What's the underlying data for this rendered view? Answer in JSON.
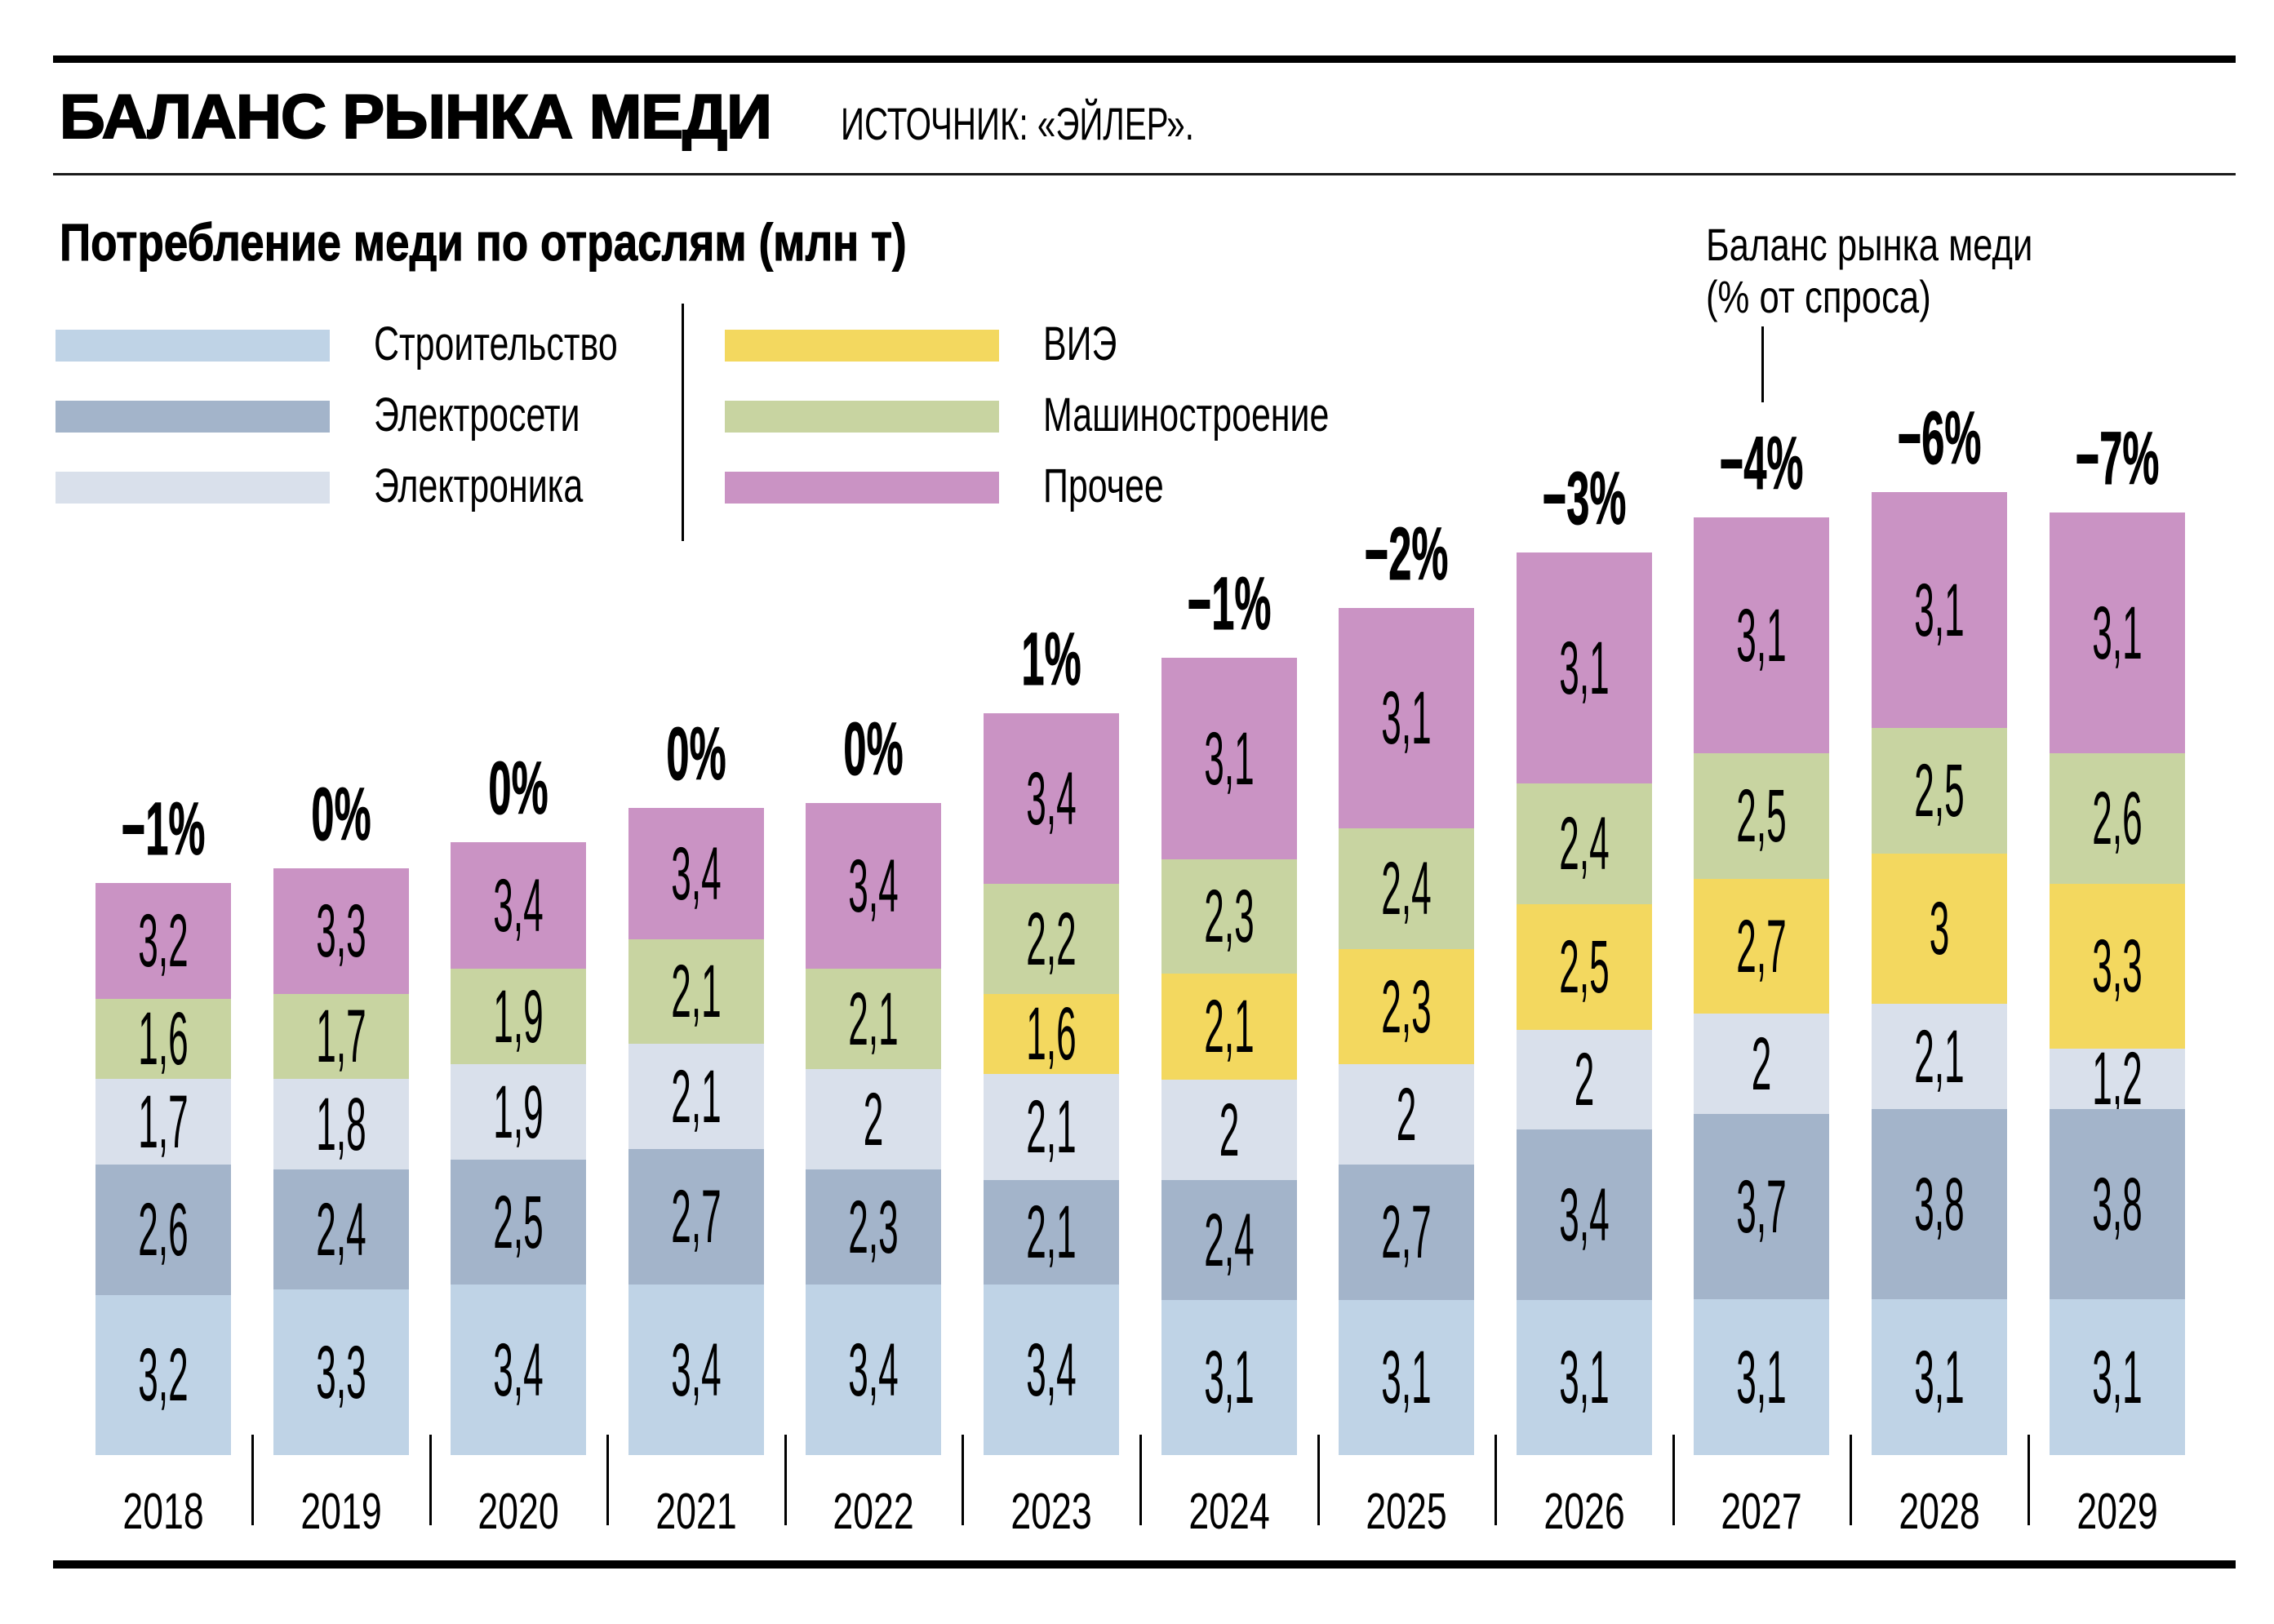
{
  "header": {
    "title": "БАЛАНС РЫНКА МЕДИ",
    "source": "ИСТОЧНИК: «ЭЙЛЕР»."
  },
  "subtitle": "Потребление меди по отраслям (млн т)",
  "annotation": {
    "line1": "Баланс рынка меди",
    "line2": "(% от спроса)"
  },
  "legend": [
    {
      "key": "construction",
      "label": "Строительство",
      "color": "#BFD3E6"
    },
    {
      "key": "grids",
      "label": "Электросети",
      "color": "#A3B4CA"
    },
    {
      "key": "electronics",
      "label": "Электроника",
      "color": "#D9E0EB"
    },
    {
      "key": "res",
      "label": "ВИЭ",
      "color": "#F3D85F"
    },
    {
      "key": "machinery",
      "label": "Машиностроение",
      "color": "#C8D4A1"
    },
    {
      "key": "other",
      "label": "Прочее",
      "color": "#CA93C4"
    }
  ],
  "chart_data": {
    "type": "bar",
    "stacked": true,
    "title": "Потребление меди по отраслям (млн т)",
    "xlabel": "",
    "ylabel": "млн т",
    "categories": [
      "2018",
      "2019",
      "2020",
      "2021",
      "2022",
      "2023",
      "2024",
      "2025",
      "2026",
      "2027",
      "2028",
      "2029"
    ],
    "series": [
      {
        "name": "Строительство",
        "values": [
          3.2,
          3.3,
          3.4,
          3.4,
          3.4,
          3.4,
          3.1,
          3.1,
          3.1,
          3.1,
          3.1,
          3.1
        ],
        "labels": [
          "3,2",
          "3,3",
          "3,4",
          "3,4",
          "3,4",
          "3,4",
          "3,1",
          "3,1",
          "3,1",
          "3,1",
          "3,1",
          "3,1"
        ]
      },
      {
        "name": "Электросети",
        "values": [
          2.6,
          2.4,
          2.5,
          2.7,
          2.3,
          2.1,
          2.4,
          2.7,
          3.4,
          3.7,
          3.8,
          3.8
        ],
        "labels": [
          "2,6",
          "2,4",
          "2,5",
          "2,7",
          "2,3",
          "2,1",
          "2,4",
          "2,7",
          "3,4",
          "3,7",
          "3,8",
          "3,8"
        ]
      },
      {
        "name": "Электроника",
        "values": [
          1.7,
          1.8,
          1.9,
          2.1,
          2,
          2.1,
          2,
          2,
          2,
          2,
          2.1,
          1.2
        ],
        "labels": [
          "1,7",
          "1,8",
          "1,9",
          "2,1",
          "2",
          "2,1",
          "2",
          "2",
          "2",
          "2",
          "2,1",
          "1,2"
        ]
      },
      {
        "name": "ВИЭ",
        "values": [
          null,
          null,
          null,
          null,
          null,
          1.6,
          2.1,
          2.3,
          2.5,
          2.7,
          3,
          3.3
        ],
        "labels": [
          null,
          null,
          null,
          null,
          null,
          "1,6",
          "2,1",
          "2,3",
          "2,5",
          "2,7",
          "3",
          "3,3"
        ]
      },
      {
        "name": "Машиностроение",
        "values": [
          1.6,
          1.7,
          1.9,
          2.1,
          2.1,
          2.2,
          2.3,
          2.4,
          2.4,
          2.5,
          2.5,
          2.6
        ],
        "labels": [
          "1,6",
          "1,7",
          "1,9",
          "2,1",
          "2,1",
          "2,2",
          "2,3",
          "2,4",
          "2,4",
          "2,5",
          "2,5",
          "2,6"
        ]
      },
      {
        "name": "Прочее",
        "values": [
          3.2,
          3.3,
          3.4,
          3.4,
          3.4,
          3.4,
          3.1,
          3.1,
          3.1,
          3.1,
          3.1,
          3.1
        ],
        "labels": [
          "3,2",
          "3,3",
          "3,4",
          "3,4",
          "3,4",
          "3,4",
          "3,1",
          "3,1",
          "3,1",
          "3,1",
          "3,1",
          "3,1"
        ]
      }
    ],
    "balance": {
      "name": "Баланс рынка меди (% от спроса)",
      "values": [
        -1,
        0,
        0,
        0,
        0,
        1,
        -1,
        -2,
        -3,
        -4,
        -6,
        -7
      ],
      "labels": [
        "−1%",
        "0%",
        "0%",
        "0%",
        "0%",
        "1%",
        "−1%",
        "−2%",
        "−3%",
        "−4%",
        "−6%",
        "−7%"
      ]
    },
    "legend_position": "top-left",
    "grid": false
  }
}
